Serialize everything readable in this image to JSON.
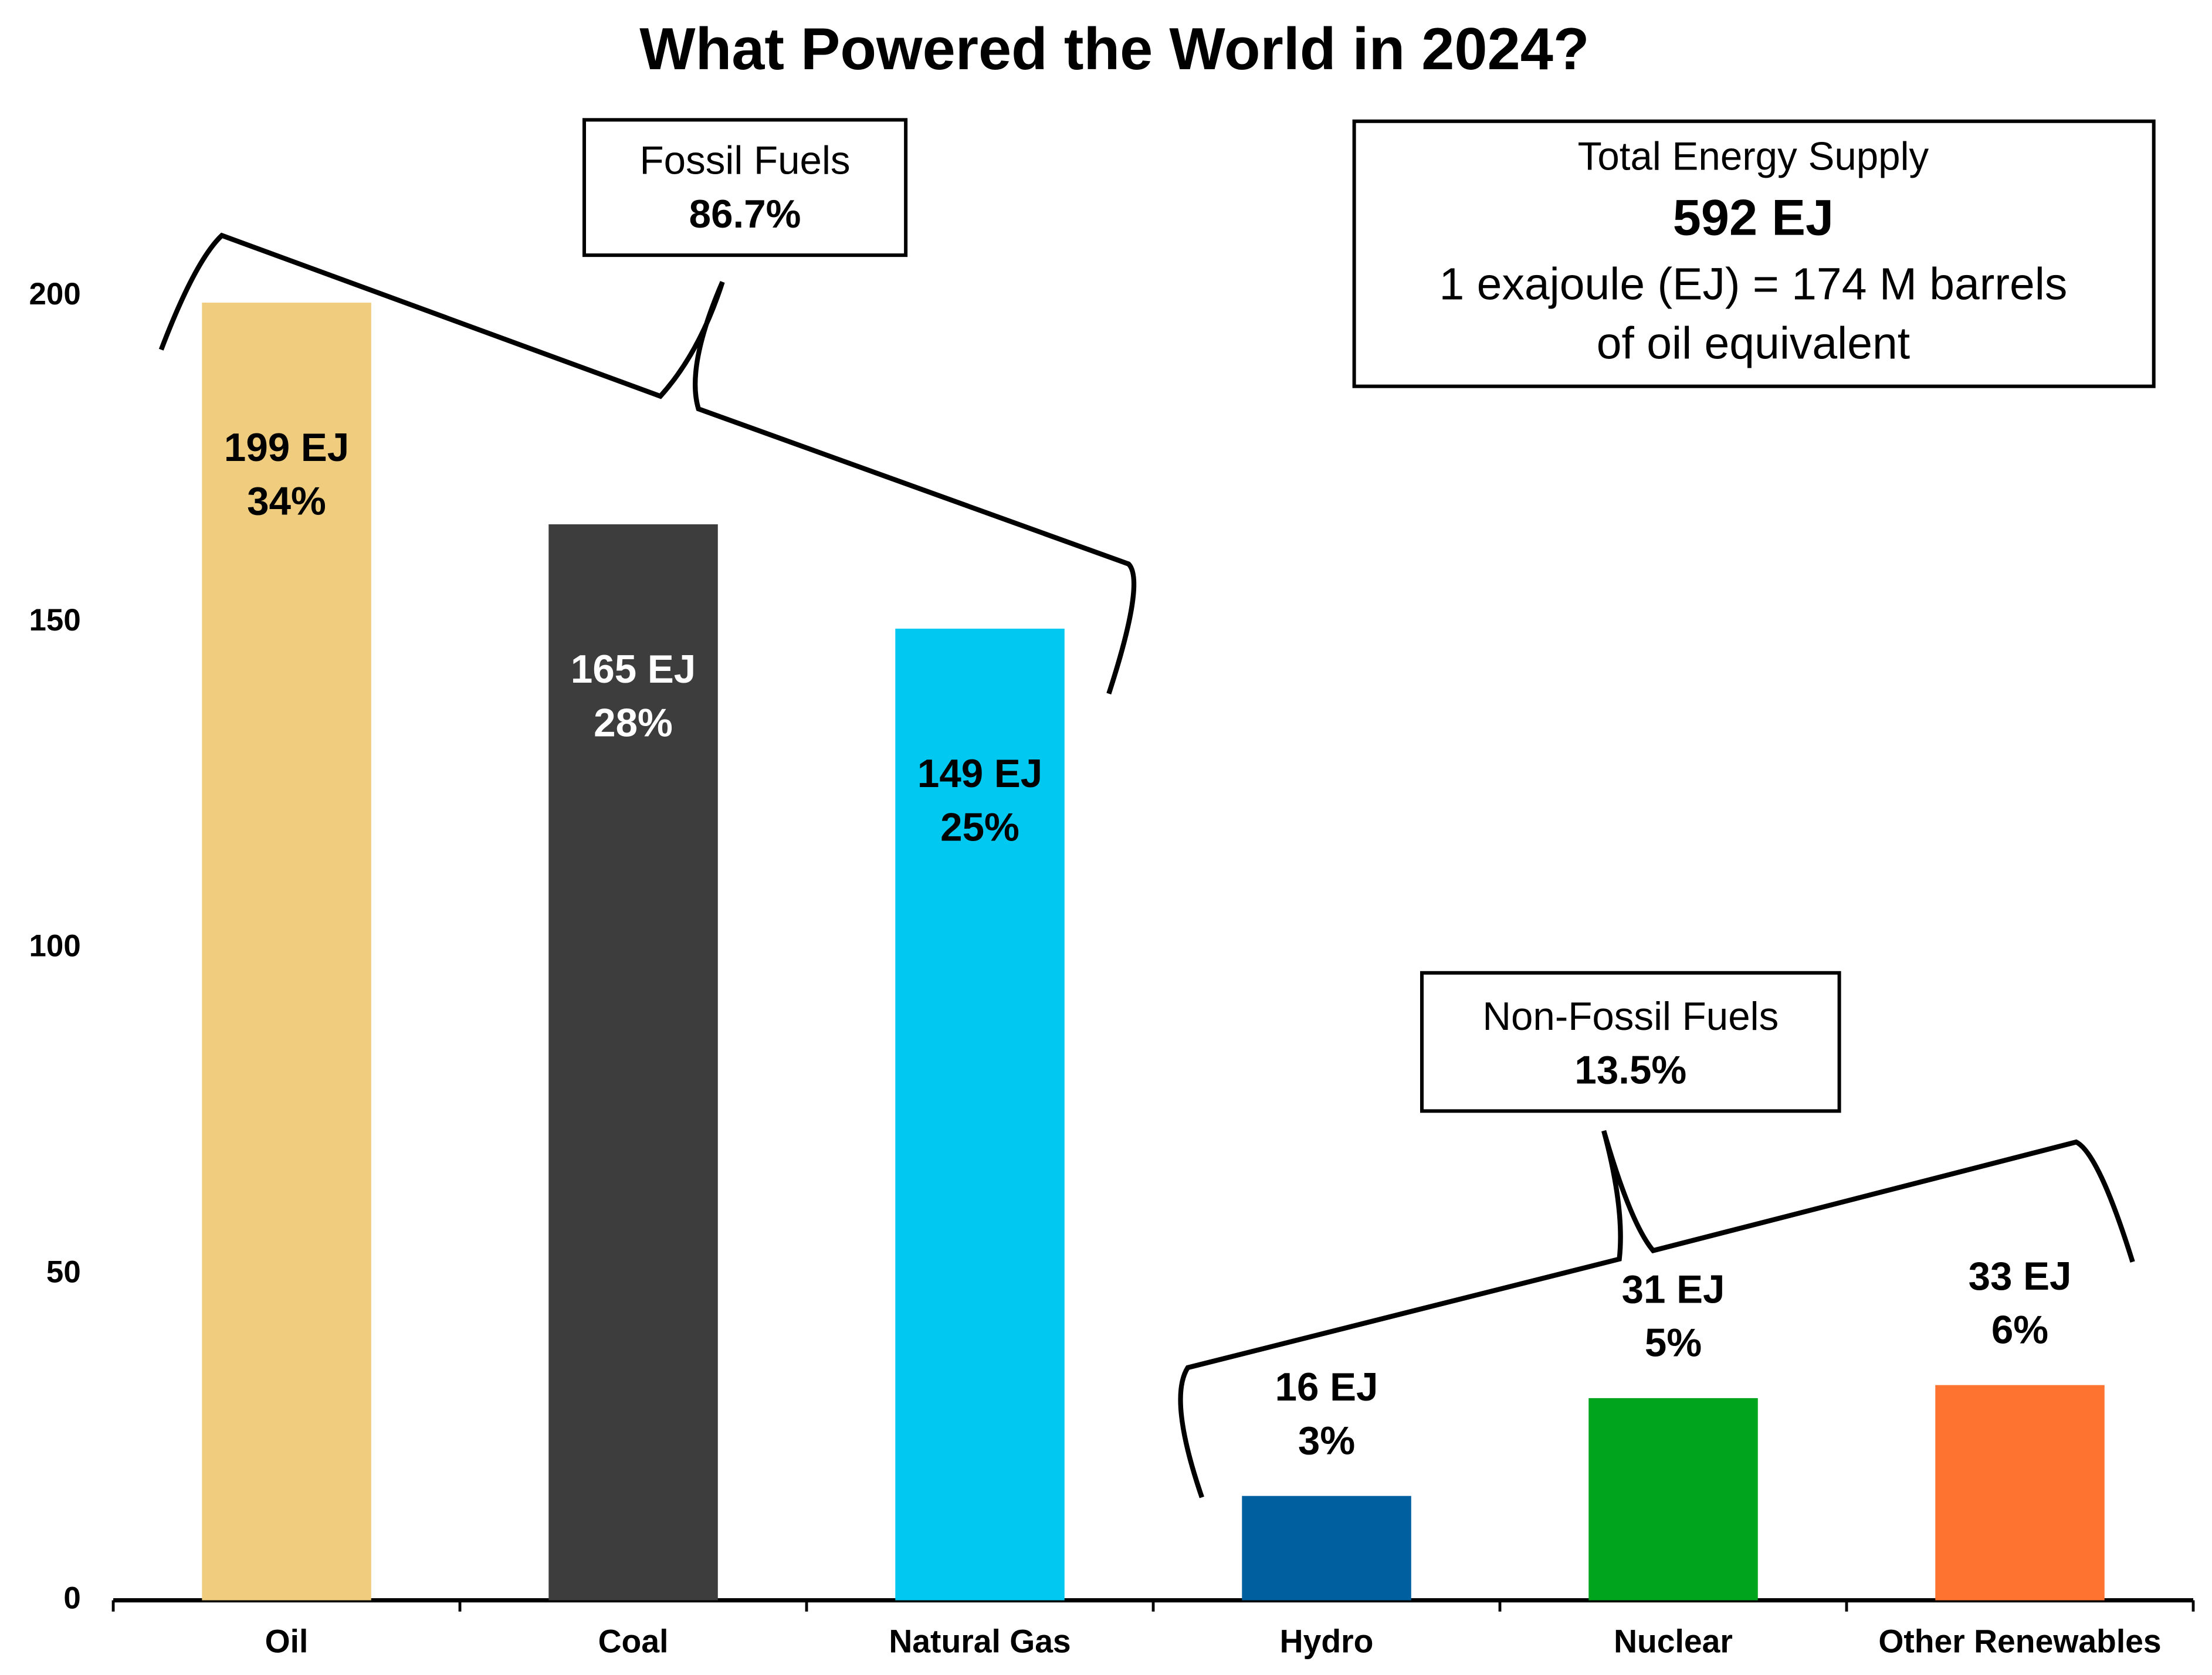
{
  "chart_data": {
    "type": "bar",
    "title": "What Powered the World in 2024?",
    "categories": [
      "Oil",
      "Coal",
      "Natural Gas",
      "Hydro",
      "Nuclear",
      "Other Renewables"
    ],
    "values": [
      199,
      165,
      149,
      16,
      31,
      33
    ],
    "value_labels": [
      "199 EJ",
      "165 EJ",
      "149 EJ",
      "16 EJ",
      "31 EJ",
      "33 EJ"
    ],
    "percent_labels": [
      "34%",
      "28%",
      "25%",
      "3%",
      "5%",
      "6%"
    ],
    "colors": [
      "#f0cd7e",
      "#3d3d3d",
      "#00c8f0",
      "#005f9e",
      "#00a51d",
      "#ff7330"
    ],
    "ylim": [
      0,
      200
    ],
    "yticks": [
      0,
      50,
      100,
      150,
      200
    ],
    "grid": false,
    "annotations": {
      "fossil": {
        "title": "Fossil Fuels",
        "share": "86.7%"
      },
      "non_fossil": {
        "title": "Non-Fossil Fuels",
        "share": "13.5%"
      },
      "total": {
        "title": "Total Energy Supply",
        "value": "592 EJ",
        "note1": "1 exajoule (EJ) = 174 M barrels",
        "note2": "of oil equivalent"
      }
    }
  }
}
